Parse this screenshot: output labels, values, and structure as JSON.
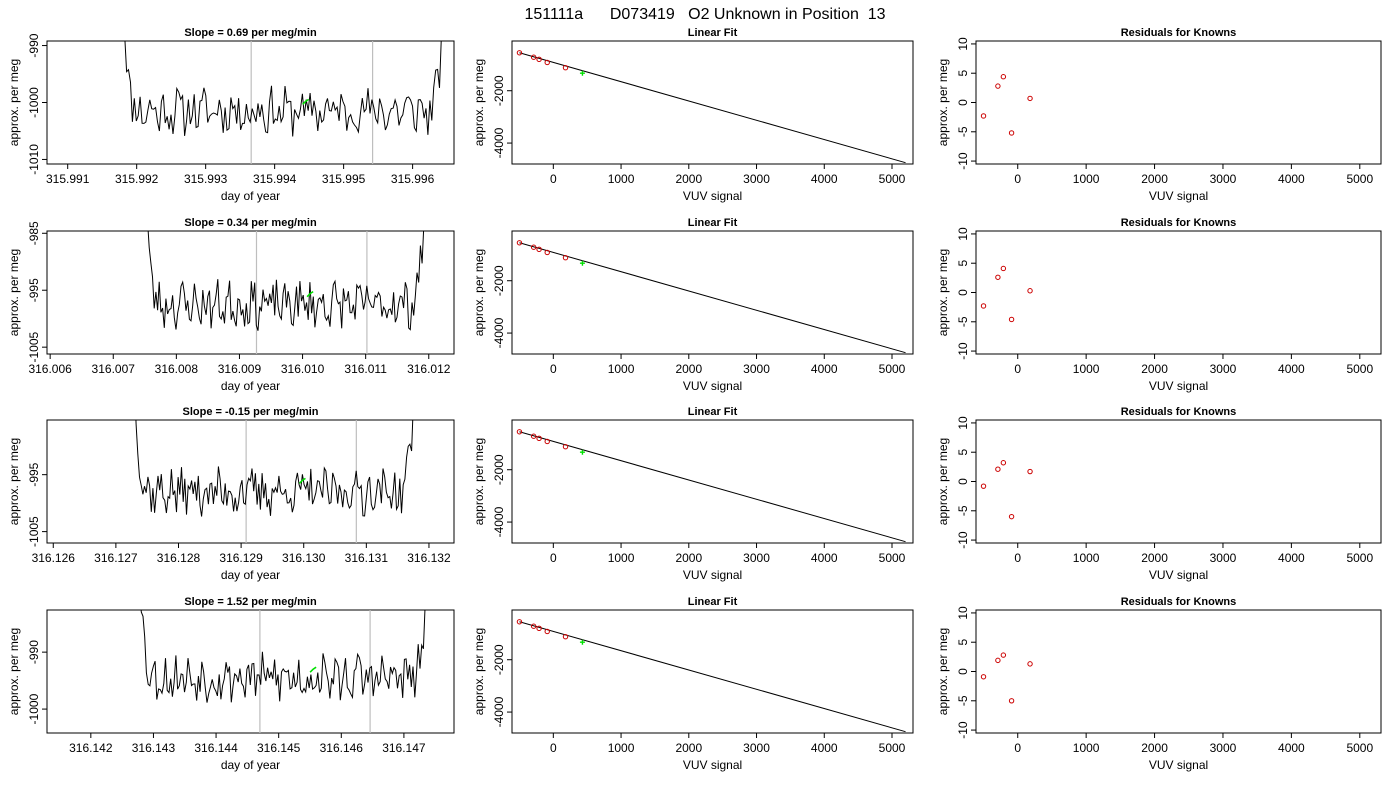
{
  "page_title": "151111a      D073419   O2 Unknown in Position  13",
  "colors": {
    "trace": "#000000",
    "marker": "#00e000",
    "residual": "#cc0000",
    "vline": "#bebebe"
  },
  "chart_data": [
    {
      "type": "line",
      "row": 0,
      "panel": "time-series",
      "title": "Slope =  0.69  per meg/min",
      "xlabel": "day of year",
      "ylabel": "approx. per meg",
      "xlim": [
        315.9907,
        315.9966
      ],
      "ylim": [
        -1010.8,
        -989.2
      ],
      "xticks": [
        "315.991",
        "315.992",
        "315.993",
        "315.994",
        "315.995",
        "315.996"
      ],
      "yticks": [
        "-990",
        "-1000",
        "-1010"
      ],
      "vlines": [
        315.99366,
        315.99542
      ],
      "trace_start": 315.99177,
      "trace_end": 315.99653,
      "baseline": -1001.5,
      "highlight": [
        315.99445,
        -999.8
      ],
      "seed": 11
    },
    {
      "type": "line",
      "row": 0,
      "panel": "linear-fit",
      "title": "Linear Fit",
      "xlabel": "VUV signal",
      "ylabel": "approx. per meg",
      "xlim": [
        -610,
        5310
      ],
      "ylim": [
        -4800,
        -100
      ],
      "xticks": [
        "0",
        "1000",
        "2000",
        "3000",
        "4000",
        "5000"
      ],
      "yticks": [
        "-2000",
        "-4000"
      ],
      "line": {
        "x": [
          -500,
          5200
        ],
        "y": [
          -550,
          -4750
        ]
      },
      "knowns": {
        "x": [
          -500,
          -290,
          -210,
          -90,
          180
        ],
        "y": [
          -550,
          -720,
          -800,
          -920,
          -1120
        ]
      },
      "unknown": {
        "x": [
          430,
          -1330
        ]
      }
    },
    {
      "type": "scatter",
      "row": 0,
      "panel": "residuals",
      "title": "Residuals for Knowns",
      "xlabel": "VUV signal",
      "ylabel": "approx. per meg",
      "xlim": [
        -610,
        5310
      ],
      "ylim": [
        -10.5,
        10.5
      ],
      "xticks": [
        "0",
        "1000",
        "2000",
        "3000",
        "4000",
        "5000"
      ],
      "yticks": [
        "10",
        "5",
        "0",
        "-5",
        "-10"
      ],
      "points": {
        "x": [
          -500,
          -290,
          -210,
          -90,
          180
        ],
        "y": [
          -2.3,
          2.8,
          4.4,
          -5.2,
          0.7
        ]
      }
    },
    {
      "type": "line",
      "row": 1,
      "panel": "time-series",
      "title": "Slope =  0.34  per meg/min",
      "xlabel": "day of year",
      "ylabel": "approx. per meg",
      "xlim": [
        316.00595,
        316.0124
      ],
      "ylim": [
        -1006.2,
        -984.6
      ],
      "xticks": [
        "316.006",
        "316.007",
        "316.008",
        "316.009",
        "316.010",
        "316.011",
        "316.012"
      ],
      "yticks": [
        "-985",
        "-995",
        "-1005"
      ],
      "vlines": [
        316.00927,
        316.01102
      ],
      "trace_start": 316.00749,
      "trace_end": 316.012,
      "baseline": -997.5,
      "highlight": [
        316.01012,
        -995.6
      ],
      "seed": 23
    },
    {
      "type": "line",
      "row": 1,
      "panel": "linear-fit",
      "title": "Linear Fit",
      "xlabel": "VUV signal",
      "ylabel": "approx. per meg",
      "xlim": [
        -610,
        5310
      ],
      "ylim": [
        -4800,
        -100
      ],
      "xticks": [
        "0",
        "1000",
        "2000",
        "3000",
        "4000",
        "5000"
      ],
      "yticks": [
        "-2000",
        "-4000"
      ],
      "line": {
        "x": [
          -500,
          5200
        ],
        "y": [
          -550,
          -4750
        ]
      },
      "knowns": {
        "x": [
          -500,
          -290,
          -210,
          -90,
          180
        ],
        "y": [
          -550,
          -720,
          -800,
          -920,
          -1120
        ]
      },
      "unknown": {
        "x": [
          430,
          -1330
        ]
      }
    },
    {
      "type": "scatter",
      "row": 1,
      "panel": "residuals",
      "title": "Residuals for Knowns",
      "xlabel": "VUV signal",
      "ylabel": "approx. per meg",
      "xlim": [
        -610,
        5310
      ],
      "ylim": [
        -10.5,
        10.5
      ],
      "xticks": [
        "0",
        "1000",
        "2000",
        "3000",
        "4000",
        "5000"
      ],
      "yticks": [
        "10",
        "5",
        "0",
        "-5",
        "-10"
      ],
      "points": {
        "x": [
          -500,
          -290,
          -210,
          -90,
          180
        ],
        "y": [
          -2.3,
          2.6,
          4.1,
          -4.6,
          0.3
        ]
      }
    },
    {
      "type": "line",
      "row": 2,
      "panel": "time-series",
      "title": "Slope =  -0.15  per meg/min",
      "xlabel": "day of year",
      "ylabel": "approx. per meg",
      "xlim": [
        316.1259,
        316.1324
      ],
      "ylim": [
        -1007.0,
        -985.4
      ],
      "xticks": [
        "316.126",
        "316.127",
        "316.128",
        "316.129",
        "316.130",
        "316.131",
        "316.132"
      ],
      "yticks": [
        "-995",
        "-1005"
      ],
      "vlines": [
        316.12908,
        316.13084
      ],
      "trace_start": 316.12727,
      "trace_end": 316.13183,
      "baseline": -998.0,
      "highlight": [
        316.12998,
        -996.0
      ],
      "seed": 37
    },
    {
      "type": "line",
      "row": 2,
      "panel": "linear-fit",
      "title": "Linear Fit",
      "xlabel": "VUV signal",
      "ylabel": "approx. per meg",
      "xlim": [
        -610,
        5310
      ],
      "ylim": [
        -4800,
        -100
      ],
      "xticks": [
        "0",
        "1000",
        "2000",
        "3000",
        "4000",
        "5000"
      ],
      "yticks": [
        "-2000",
        "-4000"
      ],
      "line": {
        "x": [
          -500,
          5200
        ],
        "y": [
          -550,
          -4750
        ]
      },
      "knowns": {
        "x": [
          -500,
          -290,
          -210,
          -90,
          180
        ],
        "y": [
          -550,
          -720,
          -800,
          -920,
          -1120
        ]
      },
      "unknown": {
        "x": [
          430,
          -1330
        ]
      }
    },
    {
      "type": "scatter",
      "row": 2,
      "panel": "residuals",
      "title": "Residuals for Knowns",
      "xlabel": "VUV signal",
      "ylabel": "approx. per meg",
      "xlim": [
        -610,
        5310
      ],
      "ylim": [
        -10.5,
        10.5
      ],
      "xticks": [
        "0",
        "1000",
        "2000",
        "3000",
        "4000",
        "5000"
      ],
      "yticks": [
        "10",
        "5",
        "0",
        "-5",
        "-10"
      ],
      "points": {
        "x": [
          -500,
          -290,
          -210,
          -90,
          180
        ],
        "y": [
          -0.8,
          2.1,
          3.2,
          -6.0,
          1.7
        ]
      }
    },
    {
      "type": "line",
      "row": 3,
      "panel": "time-series",
      "title": "Slope =  1.52  per meg/min",
      "xlabel": "day of year",
      "ylabel": "approx. per meg",
      "xlim": [
        316.1413,
        316.1478
      ],
      "ylim": [
        -1004.2,
        -982.6
      ],
      "xticks": [
        "316.142",
        "316.143",
        "316.144",
        "316.145",
        "316.146",
        "316.147"
      ],
      "yticks": [
        "-990",
        "-1000"
      ],
      "vlines": [
        316.1447,
        316.14646
      ],
      "trace_start": 316.14275,
      "trace_end": 316.14745,
      "baseline": -994.5,
      "highlight": [
        316.14555,
        -993.0
      ],
      "seed": 53
    },
    {
      "type": "line",
      "row": 3,
      "panel": "linear-fit",
      "title": "Linear Fit",
      "xlabel": "VUV signal",
      "ylabel": "approx. per meg",
      "xlim": [
        -610,
        5310
      ],
      "ylim": [
        -4800,
        -100
      ],
      "xticks": [
        "0",
        "1000",
        "2000",
        "3000",
        "4000",
        "5000"
      ],
      "yticks": [
        "-2000",
        "-4000"
      ],
      "line": {
        "x": [
          -500,
          5200
        ],
        "y": [
          -550,
          -4750
        ]
      },
      "knowns": {
        "x": [
          -500,
          -290,
          -210,
          -90,
          180
        ],
        "y": [
          -550,
          -720,
          -800,
          -920,
          -1120
        ]
      },
      "unknown": {
        "x": [
          430,
          -1330
        ]
      }
    },
    {
      "type": "scatter",
      "row": 3,
      "panel": "residuals",
      "title": "Residuals for Knowns",
      "xlabel": "VUV signal",
      "ylabel": "approx. per meg",
      "xlim": [
        -610,
        5310
      ],
      "ylim": [
        -10.5,
        10.5
      ],
      "xticks": [
        "0",
        "1000",
        "2000",
        "3000",
        "4000",
        "5000"
      ],
      "yticks": [
        "10",
        "5",
        "0",
        "-5",
        "-10"
      ],
      "points": {
        "x": [
          -500,
          -290,
          -210,
          -90,
          180
        ],
        "y": [
          -0.9,
          1.9,
          2.8,
          -5.0,
          1.3
        ]
      }
    }
  ]
}
